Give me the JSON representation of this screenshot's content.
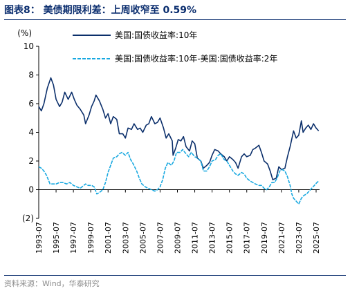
{
  "header": {
    "title": "图表8：  美债期限利差：上周收窄至 0.59%"
  },
  "footer": {
    "source": "资料来源：Wind，华泰研究"
  },
  "chart_data": {
    "type": "line",
    "ylabel": "(%)",
    "ylim": [
      -2,
      10
    ],
    "yticks": [
      -2,
      0,
      2,
      4,
      6,
      8,
      10
    ],
    "ytick_labels": [
      "(2)",
      "0",
      "2",
      "4",
      "6",
      "8",
      "10"
    ],
    "xlim": [
      1993.5,
      2025.9
    ],
    "xtick_labels": [
      "1993-07",
      "1995-07",
      "1997-07",
      "1999-07",
      "2001-07",
      "2003-07",
      "2005-07",
      "2007-07",
      "2009-07",
      "2011-07",
      "2013-07",
      "2015-07",
      "2017-07",
      "2019-07",
      "2021-07",
      "2023-07",
      "2025-07"
    ],
    "legend_position": "top-center",
    "grid": false,
    "series": [
      {
        "name": "美国:国债收益率:10年",
        "color": "#0b2f6b",
        "style": "solid",
        "x": [
          1993.5,
          1993.8,
          1994.1,
          1994.5,
          1994.9,
          1995.2,
          1995.5,
          1995.9,
          1996.2,
          1996.5,
          1996.9,
          1997.3,
          1997.6,
          1997.9,
          1998.3,
          1998.7,
          1998.9,
          1999.3,
          1999.6,
          1999.9,
          2000.1,
          2000.5,
          2000.9,
          2001.2,
          2001.5,
          2001.8,
          2002.1,
          2002.5,
          2002.8,
          2003.2,
          2003.5,
          2003.8,
          2004.2,
          2004.5,
          2004.9,
          2005.2,
          2005.5,
          2005.9,
          2006.2,
          2006.5,
          2006.9,
          2007.2,
          2007.5,
          2007.9,
          2008.2,
          2008.5,
          2008.9,
          2009.0,
          2009.3,
          2009.6,
          2009.9,
          2010.2,
          2010.5,
          2010.9,
          2011.2,
          2011.5,
          2011.8,
          2012.2,
          2012.5,
          2012.9,
          2013.2,
          2013.5,
          2013.8,
          2014.2,
          2014.5,
          2014.9,
          2015.2,
          2015.5,
          2015.9,
          2016.2,
          2016.5,
          2016.9,
          2017.2,
          2017.5,
          2017.9,
          2018.2,
          2018.5,
          2018.9,
          2019.2,
          2019.5,
          2019.9,
          2020.2,
          2020.5,
          2020.9,
          2021.2,
          2021.5,
          2021.9,
          2022.2,
          2022.5,
          2022.9,
          2023.2,
          2023.5,
          2023.8,
          2024.0,
          2024.3,
          2024.6,
          2024.9,
          2025.2,
          2025.5,
          2025.8
        ],
        "y": [
          5.8,
          5.5,
          6.0,
          7.1,
          7.8,
          7.3,
          6.3,
          5.8,
          6.1,
          6.8,
          6.3,
          6.8,
          6.3,
          5.9,
          5.6,
          5.2,
          4.6,
          5.2,
          5.8,
          6.2,
          6.6,
          6.2,
          5.6,
          5.0,
          5.3,
          4.6,
          5.1,
          4.9,
          3.9,
          3.9,
          3.6,
          4.3,
          4.2,
          4.6,
          4.2,
          4.3,
          4.0,
          4.5,
          4.6,
          5.1,
          4.6,
          4.7,
          5.0,
          4.3,
          3.6,
          3.9,
          3.4,
          2.4,
          2.9,
          3.5,
          3.4,
          3.7,
          3.0,
          2.7,
          3.4,
          3.2,
          2.2,
          2.0,
          1.5,
          1.7,
          1.9,
          2.4,
          2.8,
          2.7,
          2.5,
          2.3,
          2.0,
          2.3,
          2.1,
          1.9,
          1.5,
          2.3,
          2.5,
          2.3,
          2.4,
          2.8,
          2.9,
          3.1,
          2.6,
          2.0,
          1.8,
          1.3,
          0.7,
          0.8,
          1.6,
          1.4,
          1.5,
          2.3,
          3.0,
          4.1,
          3.6,
          3.8,
          4.8,
          4.0,
          4.3,
          4.5,
          4.2,
          4.6,
          4.3,
          4.1
        ]
      },
      {
        "name": "美国:国债收益率:10年-美国:国债收益率:2年",
        "color": "#17a8e0",
        "style": "dashed",
        "x": [
          1993.5,
          1993.8,
          1994.1,
          1994.4,
          1994.8,
          1995.1,
          1995.5,
          1995.9,
          1996.3,
          1996.7,
          1997.1,
          1997.5,
          1997.9,
          1998.3,
          1998.7,
          1998.9,
          1999.2,
          1999.6,
          1999.9,
          2000.2,
          2000.5,
          2000.9,
          2001.2,
          2001.5,
          2001.8,
          2002.1,
          2002.5,
          2002.8,
          2003.1,
          2003.5,
          2003.8,
          2004.1,
          2004.4,
          2004.8,
          2005.1,
          2005.4,
          2005.8,
          2006.1,
          2006.5,
          2006.9,
          2007.2,
          2007.5,
          2007.8,
          2008.1,
          2008.4,
          2008.8,
          2009.1,
          2009.4,
          2009.8,
          2010.1,
          2010.5,
          2010.8,
          2011.1,
          2011.5,
          2011.8,
          2012.2,
          2012.5,
          2012.9,
          2013.2,
          2013.5,
          2013.9,
          2014.2,
          2014.5,
          2014.9,
          2015.2,
          2015.5,
          2015.9,
          2016.2,
          2016.5,
          2016.9,
          2017.2,
          2017.5,
          2017.9,
          2018.2,
          2018.5,
          2018.9,
          2019.2,
          2019.5,
          2019.8,
          2020.1,
          2020.4,
          2020.7,
          2021.0,
          2021.3,
          2021.6,
          2021.9,
          2022.2,
          2022.5,
          2022.7,
          2022.9,
          2023.2,
          2023.5,
          2023.8,
          2024.1,
          2024.4,
          2024.7,
          2025.0,
          2025.3,
          2025.6,
          2025.8
        ],
        "y": [
          1.6,
          1.5,
          1.3,
          1.0,
          0.4,
          0.4,
          0.4,
          0.5,
          0.5,
          0.4,
          0.5,
          0.3,
          0.2,
          0.1,
          0.3,
          0.4,
          0.3,
          0.3,
          0.2,
          -0.3,
          -0.2,
          0.0,
          0.5,
          1.2,
          1.7,
          2.2,
          2.3,
          2.5,
          2.6,
          2.4,
          2.6,
          2.1,
          1.8,
          1.3,
          0.8,
          0.4,
          0.2,
          0.1,
          0.0,
          -0.1,
          0.0,
          0.2,
          0.7,
          1.5,
          1.9,
          1.7,
          2.0,
          2.6,
          2.6,
          2.8,
          2.5,
          2.3,
          2.6,
          2.3,
          2.2,
          2.0,
          1.3,
          1.3,
          1.6,
          2.0,
          2.1,
          2.4,
          2.5,
          2.1,
          2.0,
          1.7,
          1.3,
          1.1,
          1.0,
          1.2,
          1.1,
          0.8,
          0.6,
          0.5,
          0.4,
          0.3,
          0.3,
          0.1,
          0.0,
          0.2,
          0.5,
          0.5,
          0.8,
          1.3,
          1.4,
          1.3,
          0.9,
          0.3,
          -0.3,
          -0.6,
          -0.8,
          -1.0,
          -0.6,
          -0.4,
          -0.3,
          -0.1,
          0.1,
          0.3,
          0.5,
          0.6
        ]
      }
    ]
  }
}
